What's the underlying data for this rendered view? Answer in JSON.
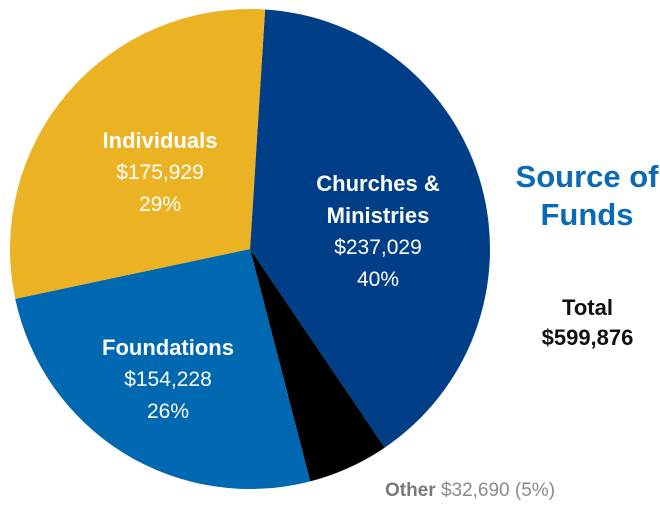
{
  "chart_data": {
    "type": "pie",
    "title": "Source of Funds",
    "categories": [
      "Churches & Ministries",
      "Other",
      "Foundations",
      "Individuals"
    ],
    "values": [
      237029,
      32690,
      154228,
      175929
    ],
    "value_labels": [
      "$237,029",
      "$32,690",
      "$154,228",
      "$175,929"
    ],
    "share_labels": [
      "40%",
      "(5%)",
      "26%",
      "29%"
    ],
    "colors": [
      "#003f87",
      "#000000",
      "#0067b1",
      "#ebb324"
    ],
    "total_title": "Total",
    "total": 599876,
    "total_label": "$599,876"
  }
}
